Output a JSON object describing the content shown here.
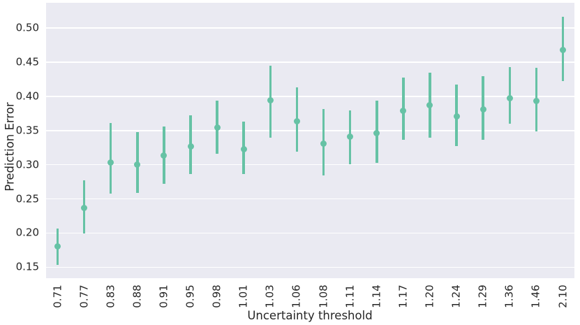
{
  "chart_data": {
    "type": "scatter",
    "subtype": "pointplot-with-error-bars",
    "title": "",
    "xlabel": "Uncertainty threshold",
    "ylabel": "Prediction Error",
    "categories": [
      "0.71",
      "0.77",
      "0.83",
      "0.88",
      "0.91",
      "0.95",
      "0.98",
      "1.01",
      "1.03",
      "1.06",
      "1.08",
      "1.11",
      "1.14",
      "1.17",
      "1.20",
      "1.24",
      "1.29",
      "1.36",
      "1.46",
      "2.10"
    ],
    "series": [
      {
        "name": "prediction-error",
        "values": [
          0.181,
          0.237,
          0.303,
          0.3,
          0.313,
          0.327,
          0.354,
          0.323,
          0.394,
          0.364,
          0.331,
          0.341,
          0.346,
          0.379,
          0.387,
          0.371,
          0.381,
          0.397,
          0.393,
          0.468
        ],
        "err_low": [
          0.153,
          0.199,
          0.258,
          0.259,
          0.272,
          0.286,
          0.316,
          0.286,
          0.34,
          0.319,
          0.284,
          0.301,
          0.303,
          0.337,
          0.34,
          0.327,
          0.337,
          0.36,
          0.349,
          0.422
        ],
        "err_high": [
          0.207,
          0.277,
          0.361,
          0.348,
          0.356,
          0.372,
          0.394,
          0.363,
          0.445,
          0.413,
          0.382,
          0.379,
          0.394,
          0.428,
          0.435,
          0.417,
          0.43,
          0.443,
          0.442,
          0.517
        ]
      }
    ],
    "ylim": [
      0.134,
      0.537
    ],
    "yticks": [
      0.5,
      0.45,
      0.4,
      0.35,
      0.3,
      0.25,
      0.2,
      0.15
    ],
    "ytick_labels": [
      "0.50",
      "0.45",
      "0.40",
      "0.35",
      "0.30",
      "0.25",
      "0.20",
      "0.15"
    ],
    "grid": true,
    "legend": false,
    "colors": {
      "point": "#66c2a5",
      "plot_background": "#eaeaf2",
      "gridline": "#ffffff",
      "text": "#262626",
      "figure_background": "#ffffff"
    }
  }
}
